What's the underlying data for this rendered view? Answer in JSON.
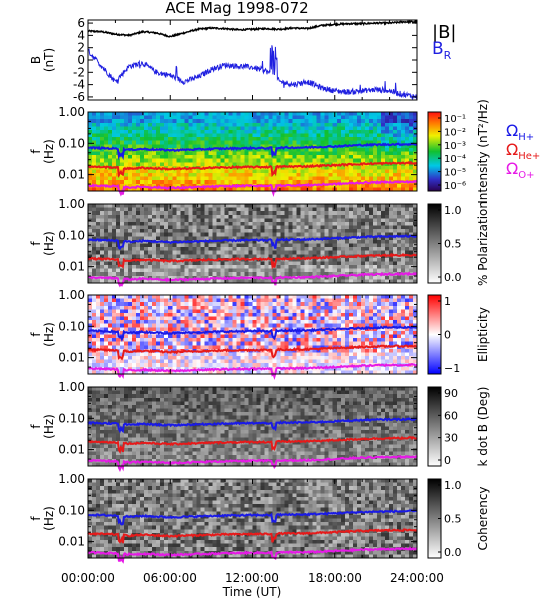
{
  "chart_data": {
    "type": "stacked-panels",
    "title": "ACE Mag 1998-072",
    "xlabel": "Time (UT)",
    "x_ticks": [
      "00:00:00",
      "06:00:00",
      "12:00:00",
      "18:00:00",
      "24:00:00"
    ],
    "x_range_hours": [
      0,
      24
    ],
    "panels": [
      {
        "id": "field",
        "type": "line",
        "ylabel": "B",
        "yunit": "(nT)",
        "ylim": [
          -6.5,
          6.5
        ],
        "y_ticks": [
          6,
          4,
          2,
          0,
          -2,
          -4,
          -6
        ],
        "legend": [
          "|B|",
          "B_R"
        ],
        "series": [
          {
            "name": "|B|",
            "color": "#000000",
            "x": [
              0,
              1,
              2,
              3,
              4,
              5,
              6,
              7,
              8,
              9,
              10,
              11,
              12,
              13,
              14,
              15,
              16,
              17,
              18,
              19,
              20,
              21,
              22,
              23,
              24
            ],
            "y": [
              4.7,
              4.6,
              4.2,
              4.0,
              4.6,
              4.4,
              3.8,
              4.4,
              5.0,
              5.2,
              5.1,
              4.9,
              5.0,
              5.1,
              5.0,
              5.2,
              5.1,
              5.6,
              5.8,
              5.9,
              5.9,
              6.0,
              6.0,
              6.2,
              6.2
            ]
          },
          {
            "name": "B_R",
            "color": "#1f1fe0",
            "x": [
              0,
              1,
              2,
              3,
              4,
              5,
              6,
              7,
              8,
              9,
              10,
              11,
              12,
              13,
              14,
              15,
              16,
              17,
              18,
              19,
              20,
              21,
              22,
              23,
              24
            ],
            "y": [
              1.5,
              -1.0,
              -3.5,
              -1.0,
              -0.5,
              -2.0,
              -2.5,
              -3.5,
              -2.8,
              -1.5,
              -0.8,
              -1.0,
              -1.2,
              -1.8,
              -3.5,
              -4.0,
              -3.5,
              -4.5,
              -5.0,
              -5.2,
              -5.0,
              -4.8,
              -5.0,
              -5.6,
              -6.0
            ]
          }
        ]
      },
      {
        "id": "intensity",
        "type": "heatmap",
        "ylabel": "f",
        "yunit": "(Hz)",
        "y_log": true,
        "ylim": [
          0.003,
          1.0
        ],
        "y_ticks": [
          "1.00",
          "0.10",
          "0.01"
        ],
        "colorbar_label": "Intensity (nT²/Hz)",
        "colorbar_ticks": [
          "10⁻¹",
          "10⁻²",
          "10⁻³",
          "10⁻⁴",
          "10⁻⁵",
          "10⁻⁶"
        ],
        "colormap": "rainbow",
        "show_gyro_legend": true
      },
      {
        "id": "polarization",
        "type": "heatmap",
        "ylabel": "f",
        "yunit": "(Hz)",
        "y_log": true,
        "ylim": [
          0.003,
          1.0
        ],
        "y_ticks": [
          "1.00",
          "0.10",
          "0.01"
        ],
        "colorbar_label": "% Polarization",
        "colorbar_ticks": [
          "1.0",
          "0.5",
          "0.0"
        ],
        "colormap": "gray"
      },
      {
        "id": "ellipticity",
        "type": "heatmap",
        "ylabel": "f",
        "yunit": "(Hz)",
        "y_log": true,
        "ylim": [
          0.003,
          1.0
        ],
        "y_ticks": [
          "1.00",
          "0.10",
          "0.01"
        ],
        "colorbar_label": "Ellipticity",
        "colorbar_ticks": [
          "1",
          "0",
          "−1"
        ],
        "colormap": "bwr"
      },
      {
        "id": "kdotb",
        "type": "heatmap",
        "ylabel": "f",
        "yunit": "(Hz)",
        "y_log": true,
        "ylim": [
          0.003,
          1.0
        ],
        "y_ticks": [
          "1.00",
          "0.10",
          "0.01"
        ],
        "colorbar_label": "k dot B (Deg)",
        "colorbar_ticks": [
          "90",
          "60",
          "30",
          "0"
        ],
        "colormap": "gray"
      },
      {
        "id": "coherency",
        "type": "heatmap",
        "ylabel": "f",
        "yunit": "(Hz)",
        "y_log": true,
        "ylim": [
          0.003,
          1.0
        ],
        "y_ticks": [
          "1.00",
          "0.10",
          "0.01"
        ],
        "colorbar_label": "Coherency",
        "colorbar_ticks": [
          "1.0",
          "0.5",
          "0.0"
        ],
        "colormap": "gray"
      }
    ],
    "gyrofrequency_lines": [
      {
        "name": "ΩH+",
        "color": "#1a1ae6",
        "x": [
          0,
          2,
          3,
          4,
          6,
          8,
          10,
          12,
          13,
          14,
          16,
          18,
          20,
          22,
          24
        ],
        "y": [
          0.072,
          0.068,
          0.062,
          0.066,
          0.06,
          0.064,
          0.068,
          0.07,
          0.07,
          0.072,
          0.074,
          0.08,
          0.088,
          0.092,
          0.094
        ]
      },
      {
        "name": "ΩHe+",
        "color": "#e61a1a",
        "x": [
          0,
          2,
          3,
          4,
          6,
          8,
          10,
          12,
          13,
          14,
          16,
          18,
          20,
          22,
          24
        ],
        "y": [
          0.018,
          0.017,
          0.0155,
          0.0165,
          0.015,
          0.016,
          0.017,
          0.0175,
          0.0175,
          0.018,
          0.0185,
          0.02,
          0.022,
          0.023,
          0.0235
        ]
      },
      {
        "name": "ΩO+",
        "color": "#e61ae6",
        "x": [
          0,
          2,
          3,
          4,
          6,
          8,
          10,
          12,
          13,
          14,
          16,
          18,
          20,
          22,
          24
        ],
        "y": [
          0.0045,
          0.00425,
          0.0039,
          0.0041,
          0.00375,
          0.004,
          0.00425,
          0.0044,
          0.0044,
          0.0045,
          0.0046,
          0.005,
          0.0055,
          0.0058,
          0.0059
        ]
      }
    ]
  }
}
